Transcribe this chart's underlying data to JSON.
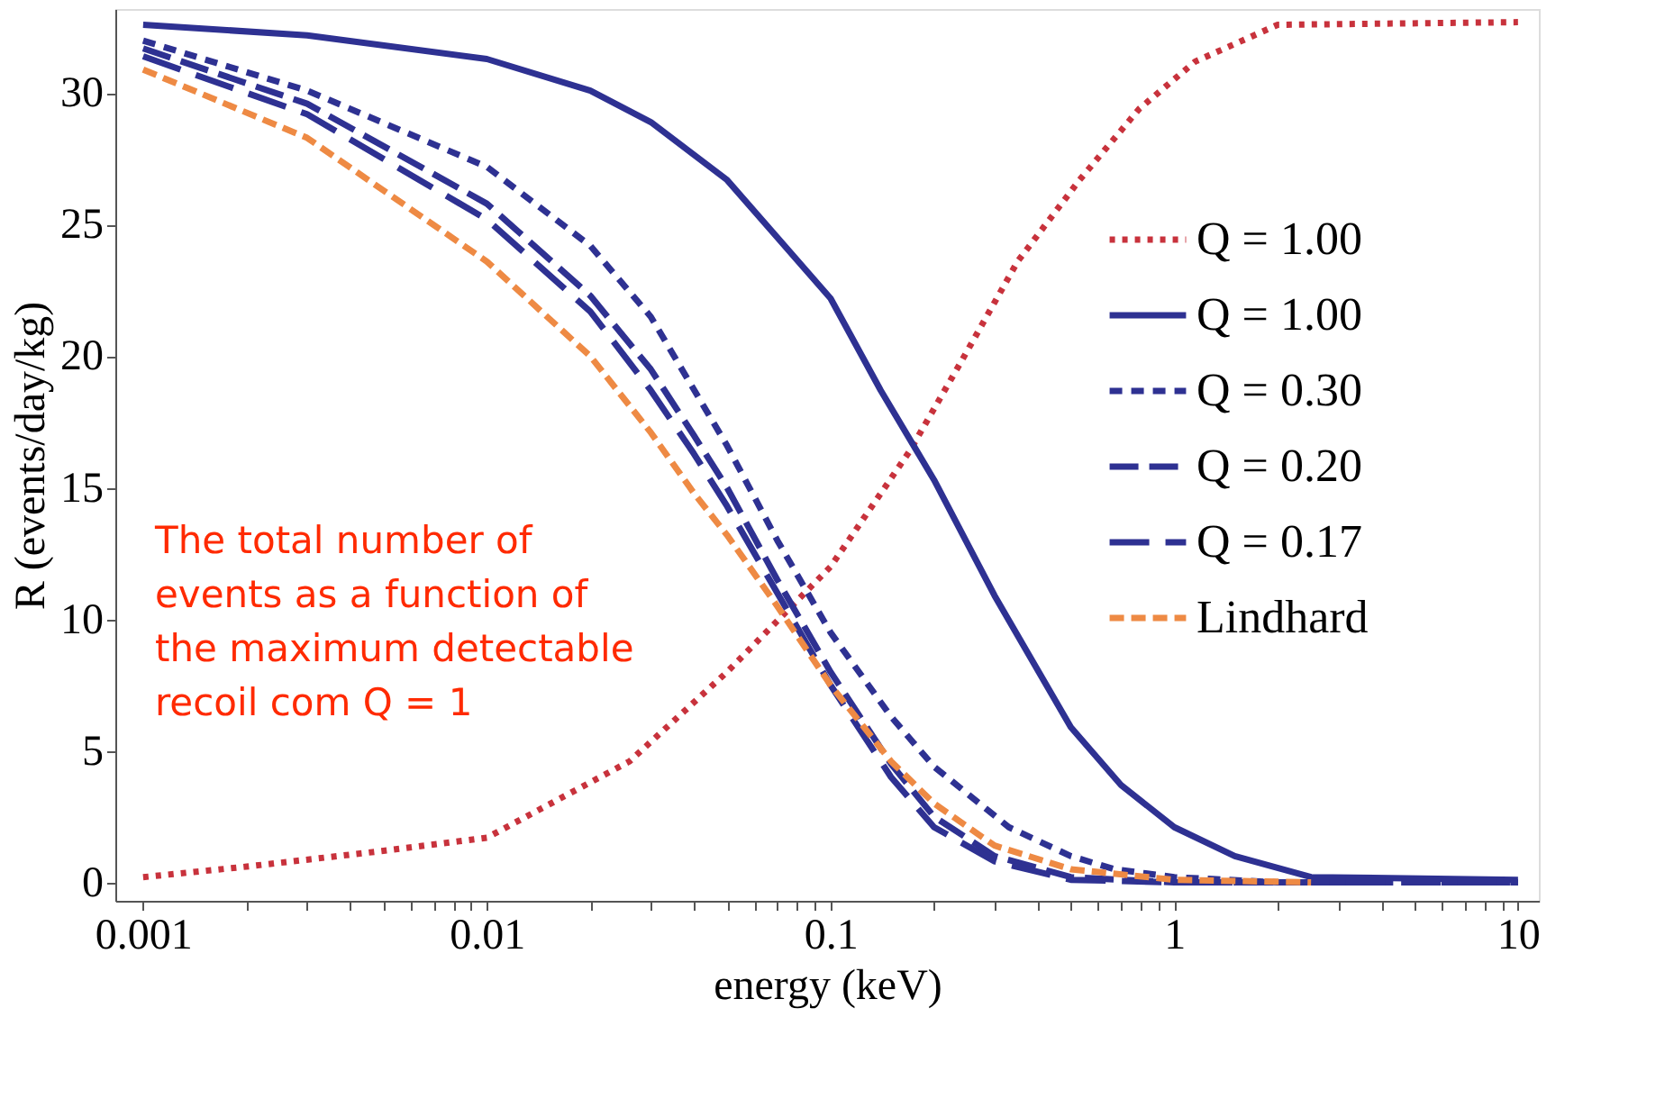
{
  "chart_data": {
    "type": "line",
    "xlabel": "energy (keV)",
    "ylabel": "R (events/day/kg)",
    "log": "x",
    "xlim": [
      0.00083,
      11.5
    ],
    "ylim": [
      -0.7,
      33.2
    ],
    "xticks": [
      0.001,
      {
        "value": 0.002,
        "label": null
      },
      {
        "value": 0.003,
        "label": null
      },
      {
        "value": 0.004,
        "label": null
      },
      {
        "value": 0.005,
        "label": null
      },
      {
        "value": 0.006,
        "label": null
      },
      {
        "value": 0.007,
        "label": null
      },
      {
        "value": 0.008,
        "label": null
      },
      {
        "value": 0.009,
        "label": null
      },
      0.01,
      {
        "value": 0.02,
        "label": null
      },
      {
        "value": 0.03,
        "label": null
      },
      {
        "value": 0.04,
        "label": null
      },
      {
        "value": 0.05,
        "label": null
      },
      {
        "value": 0.06,
        "label": null
      },
      {
        "value": 0.07,
        "label": null
      },
      {
        "value": 0.08,
        "label": null
      },
      {
        "value": 0.09,
        "label": null
      },
      0.1,
      {
        "value": 0.2,
        "label": null
      },
      {
        "value": 0.3,
        "label": null
      },
      {
        "value": 0.4,
        "label": null
      },
      {
        "value": 0.5,
        "label": null
      },
      {
        "value": 0.6,
        "label": null
      },
      {
        "value": 0.7,
        "label": null
      },
      {
        "value": 0.8,
        "label": null
      },
      {
        "value": 0.9,
        "label": null
      },
      1,
      {
        "value": 2,
        "label": null
      },
      {
        "value": 3,
        "label": null
      },
      {
        "value": 4,
        "label": null
      },
      {
        "value": 5,
        "label": null
      },
      {
        "value": 6,
        "label": null
      },
      {
        "value": 7,
        "label": null
      },
      {
        "value": 8,
        "label": null
      },
      {
        "value": 9,
        "label": null
      },
      10
    ],
    "yticks": [
      0,
      5,
      10,
      15,
      20,
      25,
      30
    ],
    "grid": false,
    "legend": "top right",
    "marker": "none",
    "annotations": [
      "The total number of events as a function of the maximum detectable recoil com Q = 1"
    ],
    "series": [
      {
        "name": "Q = 1.00",
        "color": "#c8323c",
        "line_style": "dotted",
        "x": [
          0.001,
          0.002,
          0.005,
          0.01,
          0.026,
          0.05,
          0.1,
          0.17,
          0.24,
          0.35,
          0.53,
          0.79,
          1.15,
          2,
          10
        ],
        "values": [
          0.2,
          0.6,
          1.2,
          1.7,
          4.6,
          8,
          12,
          16.4,
          19.8,
          23.6,
          26.7,
          29.4,
          31.2,
          32.6,
          32.7
        ]
      },
      {
        "name": "Q = 1.00",
        "color": "#2e3192",
        "line_style": "solid",
        "x": [
          0.001,
          0.003,
          0.01,
          0.02,
          0.03,
          0.05,
          0.1,
          0.14,
          0.2,
          0.3,
          0.5,
          0.7,
          1,
          1.5,
          2.5,
          10
        ],
        "values": [
          32.6,
          32.2,
          31.3,
          30.1,
          28.9,
          26.7,
          22.2,
          18.7,
          15.3,
          10.9,
          5.9,
          3.7,
          2.1,
          1.0,
          0.2,
          0.1
        ]
      },
      {
        "name": "Q = 0.30",
        "color": "#2e3192",
        "line_style": "dashed",
        "x": [
          0.001,
          0.003,
          0.01,
          0.02,
          0.03,
          0.05,
          0.07,
          0.1,
          0.15,
          0.2,
          0.33,
          0.5,
          0.67,
          1,
          2,
          10
        ],
        "values": [
          32.0,
          30.1,
          27.2,
          24.2,
          21.5,
          16.6,
          13,
          9.5,
          6.3,
          4.4,
          2.1,
          1.0,
          0.5,
          0.2,
          0,
          0
        ]
      },
      {
        "name": "Q = 0.20",
        "color": "#2e3192",
        "line_style": "dashed",
        "x": [
          0.001,
          0.003,
          0.01,
          0.02,
          0.03,
          0.04,
          0.05,
          0.07,
          0.1,
          0.15,
          0.2,
          0.3,
          0.5,
          1,
          10
        ],
        "values": [
          31.7,
          29.6,
          25.8,
          22.3,
          19.5,
          17.0,
          15.0,
          11.5,
          8,
          4.5,
          2.5,
          1.0,
          0.2,
          0,
          0
        ]
      },
      {
        "name": "Q = 0.17",
        "color": "#2e3192",
        "line_style": "dashed",
        "x": [
          0.001,
          0.003,
          0.01,
          0.02,
          0.03,
          0.04,
          0.05,
          0.07,
          0.1,
          0.15,
          0.2,
          0.3,
          0.5,
          1,
          10
        ],
        "values": [
          31.4,
          29.2,
          25.2,
          21.7,
          18.7,
          16.3,
          14.3,
          11,
          7.5,
          4,
          2.1,
          0.8,
          0.1,
          0,
          0
        ]
      },
      {
        "name": "Lindhard",
        "color": "#ee8a44",
        "line_style": "dashed",
        "x": [
          0.001,
          0.003,
          0.01,
          0.02,
          0.03,
          0.04,
          0.05,
          0.07,
          0.1,
          0.15,
          0.2,
          0.3,
          0.5,
          1,
          2.5
        ],
        "values": [
          30.9,
          28.3,
          23.6,
          20,
          17.1,
          14.8,
          13.2,
          10.5,
          7.5,
          4.6,
          3.0,
          1.4,
          0.5,
          0.1,
          0
        ]
      }
    ]
  }
}
